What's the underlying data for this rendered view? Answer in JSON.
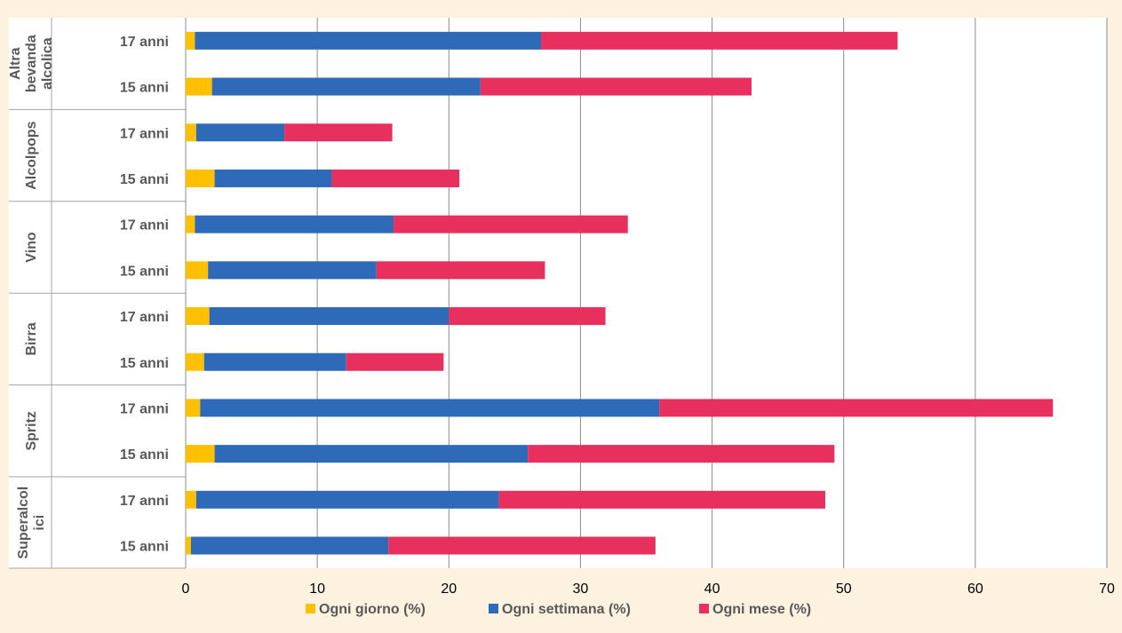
{
  "chart_data": {
    "type": "bar",
    "orientation": "horizontal",
    "stacked": true,
    "groups": [
      {
        "label": [
          "Altra",
          "bevanda",
          "alcolica"
        ],
        "categories": [
          "17 anni",
          "15 anni"
        ]
      },
      {
        "label": [
          "Alcolpops"
        ],
        "categories": [
          "17 anni",
          "15 anni"
        ]
      },
      {
        "label": [
          "Vino"
        ],
        "categories": [
          "17 anni",
          "15 anni"
        ]
      },
      {
        "label": [
          "Birra"
        ],
        "categories": [
          "17 anni",
          "15 anni"
        ]
      },
      {
        "label": [
          "Spritz"
        ],
        "categories": [
          "17 anni",
          "15 anni"
        ]
      },
      {
        "label": [
          "Superalcol",
          "ici"
        ],
        "categories": [
          "17 anni",
          "15 anni"
        ]
      }
    ],
    "series": [
      {
        "name": "Ogni giorno (%)",
        "color": "#ffc000",
        "values": [
          0.7,
          2.0,
          0.8,
          2.2,
          0.7,
          1.7,
          1.8,
          1.4,
          1.1,
          2.2,
          0.8,
          0.4
        ]
      },
      {
        "name": "Ogni settimana (%)",
        "color": "#2e6ab7",
        "values": [
          26.3,
          20.4,
          6.7,
          8.9,
          15.1,
          12.8,
          18.2,
          10.8,
          34.9,
          23.8,
          23.0,
          15.0
        ]
      },
      {
        "name": "Ogni mese (%)",
        "color": "#e8305f",
        "values": [
          27.1,
          20.6,
          8.2,
          9.7,
          17.8,
          12.8,
          11.9,
          7.4,
          29.9,
          23.3,
          24.8,
          20.3
        ]
      }
    ],
    "xlim": [
      0,
      70
    ],
    "xticks": [
      0,
      10,
      20,
      30,
      40,
      50,
      60,
      70
    ],
    "grid": true,
    "legend_position": "bottom"
  },
  "colors": {
    "background": "#fdf1df",
    "plot_background": "#ffffff",
    "gridline": "#8c8c8c",
    "separator": "#a6a6a6"
  }
}
